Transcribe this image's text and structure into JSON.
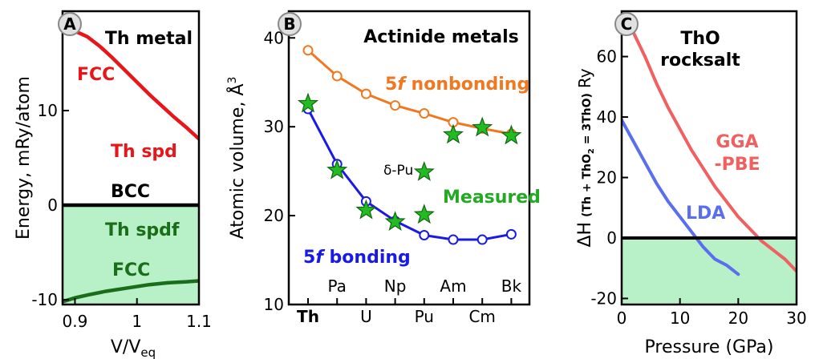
{
  "chart_data": [
    {
      "type": "line",
      "panel_label": "A",
      "annotations": {
        "title": "Th metal",
        "fcc_upper": "FCC",
        "th_spd": "Th spd",
        "bcc": "BCC",
        "th_spdf": "Th spdf",
        "fcc_lower": "FCC"
      },
      "xlabel": "V/V",
      "xlabel_sub": "eq",
      "ylabel": "Energy, mRy/atom",
      "xlim": [
        0.88,
        1.1
      ],
      "ylim": [
        -10.5,
        20.5
      ],
      "xticks": [
        "0.9",
        "1",
        "1.1"
      ],
      "yticks": [
        "-10",
        "0",
        "10"
      ],
      "xtick_values": [
        0.9,
        1.0,
        1.1
      ],
      "ytick_values": [
        -10,
        0,
        10
      ],
      "shaded_region": {
        "from": -10.5,
        "to": 0,
        "color": "#b8f0c8"
      },
      "series": [
        {
          "color": "#e8161b",
          "x": [
            0.9,
            0.92,
            0.94,
            0.96,
            0.98,
            1.0,
            1.02,
            1.04,
            1.06,
            1.08,
            1.1
          ],
          "y": [
            18.4,
            17.8,
            16.8,
            15.6,
            14.3,
            13.0,
            11.7,
            10.5,
            9.3,
            8.2,
            7.0
          ]
        },
        {
          "color": "#000000",
          "x": [
            0.88,
            1.1
          ],
          "y": [
            0,
            0
          ]
        },
        {
          "color": "#1a6e1a",
          "x": [
            0.88,
            0.9,
            0.92,
            0.95,
            0.98,
            1.0,
            1.02,
            1.05,
            1.08,
            1.1
          ],
          "y": [
            -10.2,
            -9.8,
            -9.5,
            -9.1,
            -8.8,
            -8.6,
            -8.4,
            -8.2,
            -8.1,
            -8.0
          ]
        }
      ]
    },
    {
      "type": "line",
      "panel_label": "B",
      "annotations": {
        "title": "Actinide metals",
        "nonbonding_pre": "5",
        "nonbonding_f": "f",
        "nonbonding_post": " nonbonding",
        "bonding_pre": "5",
        "bonding_f": "f",
        "bonding_post": " bonding",
        "measured": "Measured",
        "delta_pu": "δ-Pu"
      },
      "ylabel": "Atomic volume, Å",
      "ylabel_sup": "3",
      "ylim": [
        10,
        43
      ],
      "yticks": [
        "10",
        "20",
        "30",
        "40"
      ],
      "ytick_values": [
        10,
        20,
        30,
        40
      ],
      "categories": [
        "Th",
        "Pa",
        "U",
        "Np",
        "Pu",
        "Am",
        "Cm",
        "Bk"
      ],
      "category_labels_row1": [
        "Th",
        "U",
        "Pu",
        "Cm"
      ],
      "category_labels_row2": [
        "Pa",
        "Np",
        "Am",
        "Bk"
      ],
      "series": [
        {
          "color": "#f07820",
          "values": [
            38.6,
            35.7,
            33.7,
            32.4,
            31.5,
            30.5,
            29.8,
            29.2
          ],
          "marker": "open-circle"
        },
        {
          "color": "#1a1ae6",
          "values": [
            32.0,
            25.8,
            21.6,
            19.4,
            17.8,
            17.3,
            17.3,
            17.9
          ],
          "marker": "open-circle"
        }
      ],
      "measured_stars": {
        "color": "#22bb22",
        "points": [
          {
            "x": 0,
            "y": 32.6
          },
          {
            "x": 1,
            "y": 25.1
          },
          {
            "x": 2,
            "y": 20.6
          },
          {
            "x": 3,
            "y": 19.3
          },
          {
            "x": 4,
            "y": 20.1
          },
          {
            "x": 4,
            "y": 24.9
          },
          {
            "x": 5,
            "y": 29.1
          },
          {
            "x": 6,
            "y": 29.9
          },
          {
            "x": 7,
            "y": 29.0
          }
        ]
      }
    },
    {
      "type": "line",
      "panel_label": "C",
      "annotations": {
        "title_line1": "ThO",
        "title_line2": "rocksalt",
        "gga_line1": "GGA",
        "gga_line2": "-PBE",
        "lda": "LDA"
      },
      "xlabel": "Pressure (GPa)",
      "ylabel_main": "ΔH",
      "ylabel_paren": "(Th + ThO",
      "ylabel_sub": "2",
      "ylabel_paren_end": " = 3ThO)",
      "ylabel_unit": "Ry",
      "xlim": [
        0,
        30
      ],
      "ylim": [
        -22,
        75
      ],
      "xticks": [
        "0",
        "10",
        "20",
        "30"
      ],
      "yticks": [
        "-20",
        "0",
        "20",
        "40",
        "60"
      ],
      "xtick_values": [
        0,
        10,
        20,
        30
      ],
      "ytick_values": [
        -20,
        0,
        20,
        40,
        60
      ],
      "shaded_region": {
        "from": -22,
        "to": 0,
        "color": "#b8f0c8"
      },
      "series": [
        {
          "name": "GGA-PBE",
          "color": "#f06060",
          "x": [
            1,
            2,
            4,
            6,
            8,
            10,
            12,
            14,
            16,
            18,
            20,
            22,
            24,
            26,
            28,
            30
          ],
          "y": [
            74,
            68,
            60,
            51,
            43,
            36,
            29,
            23,
            17,
            12,
            7,
            3,
            -1,
            -4,
            -7,
            -11
          ]
        },
        {
          "name": "LDA",
          "color": "#5a6ef0",
          "x": [
            0,
            2,
            4,
            6,
            8,
            10,
            12,
            14,
            16,
            18,
            20
          ],
          "y": [
            39,
            32,
            25,
            18,
            12,
            7,
            2,
            -3,
            -7,
            -9,
            -12
          ]
        },
        {
          "name": "",
          "color": "#000000",
          "x": [
            0,
            30
          ],
          "y": [
            0,
            0
          ]
        }
      ]
    }
  ]
}
